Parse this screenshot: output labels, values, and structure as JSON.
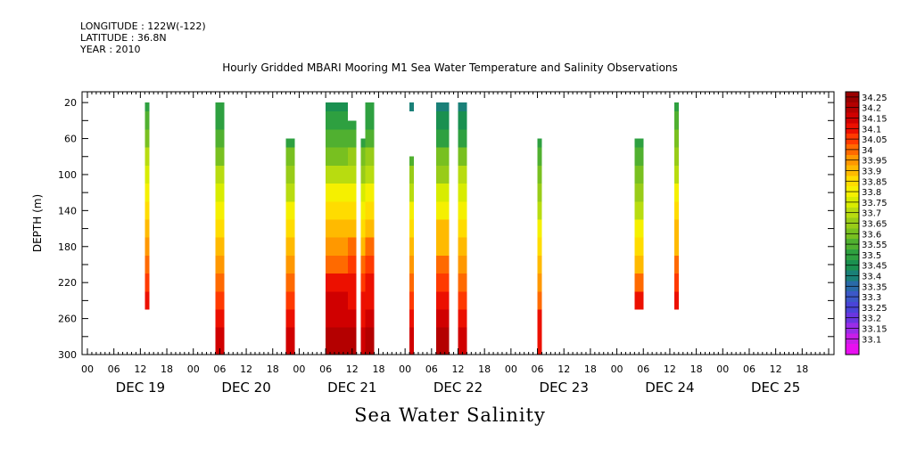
{
  "header": {
    "longitude": "LONGITUDE : 122W(-122)",
    "latitude": "LATITUDE : 36.8N",
    "year": "YEAR : 2010"
  },
  "chart_data": {
    "type": "heatmap",
    "title": "Hourly Gridded MBARI Mooring M1 Sea Water Temperature and Salinity Observations",
    "xlabel": "Sea Water Salinity",
    "ylabel": "DEPTH (m)",
    "x_start": "DEC 19 00",
    "hours_total": 168,
    "hour_tick_labels": [
      "00",
      "06",
      "12",
      "18",
      "00",
      "06",
      "12",
      "18",
      "00",
      "06",
      "12",
      "18",
      "00",
      "06",
      "12",
      "18",
      "00",
      "06",
      "12",
      "18",
      "00",
      "06",
      "12",
      "18",
      "00",
      "06",
      "12",
      "18"
    ],
    "day_labels": [
      "DEC 19",
      "DEC 20",
      "DEC 21",
      "DEC 22",
      "DEC 23",
      "DEC 24",
      "DEC 25"
    ],
    "y_ticks": [
      20,
      60,
      100,
      140,
      180,
      220,
      260,
      300
    ],
    "ylim": [
      300,
      8
    ],
    "depth_profile_levels": [
      20,
      40,
      60,
      80,
      100,
      120,
      140,
      160,
      180,
      200,
      220,
      240,
      260,
      280,
      300
    ],
    "colorbar_levels": [
      34.25,
      34.2,
      34.15,
      34.1,
      34.05,
      34,
      33.95,
      33.9,
      33.85,
      33.8,
      33.75,
      33.7,
      33.65,
      33.6,
      33.55,
      33.5,
      33.45,
      33.4,
      33.35,
      33.3,
      33.25,
      33.2,
      33.15,
      33.1
    ],
    "colorbar_colors": [
      "#9a0000",
      "#b40000",
      "#d00000",
      "#ec1000",
      "#ff3a00",
      "#ff6a00",
      "#ff9800",
      "#ffba00",
      "#ffdc00",
      "#f5f000",
      "#d8ec00",
      "#b8dc10",
      "#98cc18",
      "#78c020",
      "#50b030",
      "#2ea040",
      "#1a9050",
      "#1a8078",
      "#2a6aa8",
      "#3c58c8",
      "#4a44d8",
      "#6a36e0",
      "#9a2ce8",
      "#c81ee8",
      "#e810f0"
    ],
    "series": [
      {
        "start_hour": 13,
        "end_hour": 14,
        "top_depth": 20,
        "bottom_depth": 250,
        "profile": [
          33.52,
          33.56,
          33.64,
          33.72,
          33.78,
          33.82,
          33.86,
          33.9,
          33.95,
          34.0,
          34.06,
          34.12
        ]
      },
      {
        "start_hour": 29,
        "end_hour": 31,
        "top_depth": 20,
        "bottom_depth": 300,
        "profile": [
          33.5,
          33.52,
          33.58,
          33.64,
          33.7,
          33.76,
          33.82,
          33.86,
          33.9,
          33.96,
          34.02,
          34.08,
          34.14,
          34.18,
          34.18
        ]
      },
      {
        "start_hour": 45,
        "end_hour": 47,
        "top_depth": 60,
        "bottom_depth": 300,
        "profile": [
          null,
          null,
          33.52,
          33.6,
          33.66,
          33.74,
          33.8,
          33.86,
          33.9,
          33.96,
          34.02,
          34.08,
          34.12,
          34.16,
          34.16
        ]
      },
      {
        "start_hour": 54,
        "end_hour": 59,
        "top_depth": 20,
        "bottom_depth": 300,
        "profile": [
          33.48,
          33.5,
          33.56,
          33.64,
          33.72,
          33.8,
          33.86,
          33.92,
          33.98,
          34.04,
          34.1,
          34.15,
          34.18,
          34.2,
          34.2
        ]
      },
      {
        "start_hour": 59,
        "end_hour": 61,
        "top_depth": 40,
        "bottom_depth": 300,
        "profile": [
          null,
          33.52,
          33.58,
          33.66,
          33.74,
          33.82,
          33.88,
          33.94,
          34.0,
          34.05,
          34.1,
          34.14,
          34.18,
          34.2,
          34.2
        ]
      },
      {
        "start_hour": 62,
        "end_hour": 63,
        "top_depth": 60,
        "bottom_depth": 300,
        "profile": [
          null,
          null,
          33.52,
          33.6,
          33.68,
          33.76,
          33.82,
          33.88,
          33.94,
          34.0,
          34.06,
          34.1,
          34.14,
          34.16,
          34.16
        ]
      },
      {
        "start_hour": 63,
        "end_hour": 65,
        "top_depth": 20,
        "bottom_depth": 300,
        "profile": [
          33.5,
          33.52,
          33.58,
          33.66,
          33.74,
          33.82,
          33.88,
          33.94,
          34.0,
          34.06,
          34.1,
          34.14,
          34.18,
          34.2,
          34.2
        ]
      },
      {
        "start_hour": 73,
        "end_hour": 74,
        "top_depth": 20,
        "bottom_depth": 30,
        "profile": [
          33.42
        ]
      },
      {
        "start_hour": 73,
        "end_hour": 74,
        "top_depth": 80,
        "bottom_depth": 300,
        "profile": [
          null,
          null,
          null,
          33.58,
          33.66,
          33.74,
          33.82,
          33.88,
          33.92,
          33.96,
          34.02,
          34.08,
          34.12,
          34.16,
          34.16
        ]
      },
      {
        "start_hour": 79,
        "end_hour": 82,
        "top_depth": 20,
        "bottom_depth": 300,
        "profile": [
          33.42,
          33.45,
          33.52,
          33.6,
          33.68,
          33.76,
          33.84,
          33.9,
          33.94,
          34.0,
          34.06,
          34.1,
          34.15,
          34.2,
          34.2
        ]
      },
      {
        "start_hour": 84,
        "end_hour": 86,
        "top_depth": 20,
        "bottom_depth": 300,
        "profile": [
          33.44,
          33.48,
          33.54,
          33.62,
          33.7,
          33.76,
          33.82,
          33.86,
          33.9,
          33.96,
          34.02,
          34.08,
          34.14,
          34.18,
          34.18
        ]
      },
      {
        "start_hour": 102,
        "end_hour": 103,
        "top_depth": 60,
        "bottom_depth": 300,
        "profile": [
          null,
          null,
          33.5,
          33.56,
          33.62,
          33.68,
          33.74,
          33.8,
          33.86,
          33.92,
          33.98,
          34.04,
          34.1,
          34.14,
          34.14
        ]
      },
      {
        "start_hour": 124,
        "end_hour": 126,
        "top_depth": 60,
        "bottom_depth": 250,
        "profile": [
          null,
          null,
          33.52,
          33.56,
          33.62,
          33.68,
          33.74,
          33.8,
          33.86,
          33.94,
          34.02,
          34.1,
          34.2
        ]
      },
      {
        "start_hour": 133,
        "end_hour": 134,
        "top_depth": 20,
        "bottom_depth": 250,
        "profile": [
          33.52,
          33.56,
          33.62,
          33.68,
          33.74,
          33.8,
          33.86,
          33.9,
          33.94,
          34.0,
          34.08,
          34.14,
          34.2
        ]
      }
    ]
  }
}
